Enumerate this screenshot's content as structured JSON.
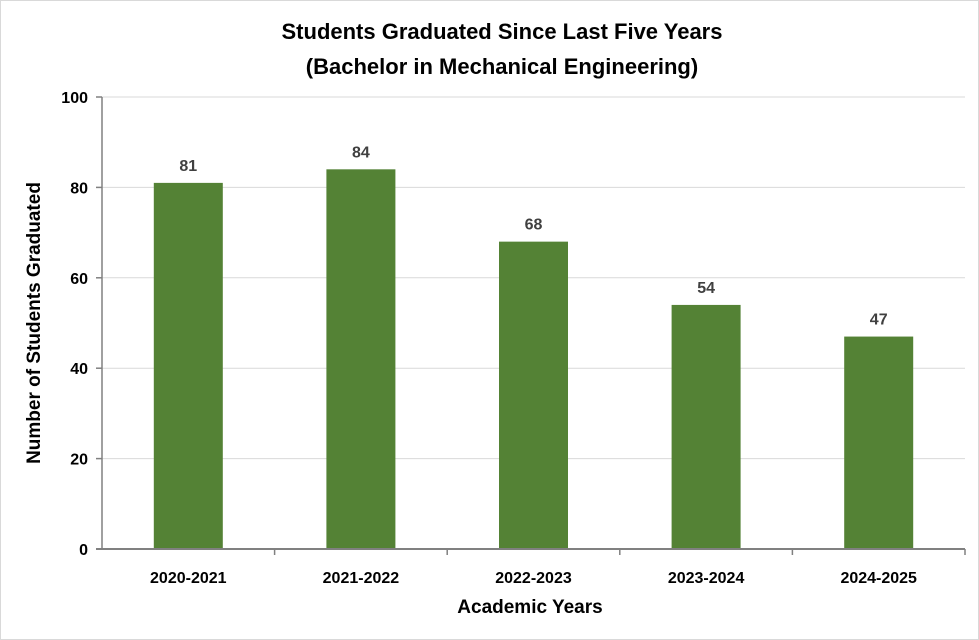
{
  "chart_data": {
    "type": "bar",
    "title_line1": "Students Graduated Since Last Five Years",
    "title_line2": "(Bachelor in Mechanical Engineering)",
    "xlabel": "Academic Years",
    "ylabel": "Number of Students Graduated",
    "categories": [
      "2020-2021",
      "2021-2022",
      "2022-2023",
      "2023-2024",
      "2024-2025"
    ],
    "values": [
      81,
      84,
      68,
      54,
      47
    ],
    "ylim": [
      0,
      100
    ],
    "yticks": [
      0,
      20,
      40,
      60,
      80,
      100
    ],
    "grid": true,
    "data_labels": true,
    "legend": "none",
    "colors": {
      "bar": "#548235",
      "grid": "#d9d9d9",
      "axis": "#808080",
      "data_label": "#404040"
    }
  }
}
